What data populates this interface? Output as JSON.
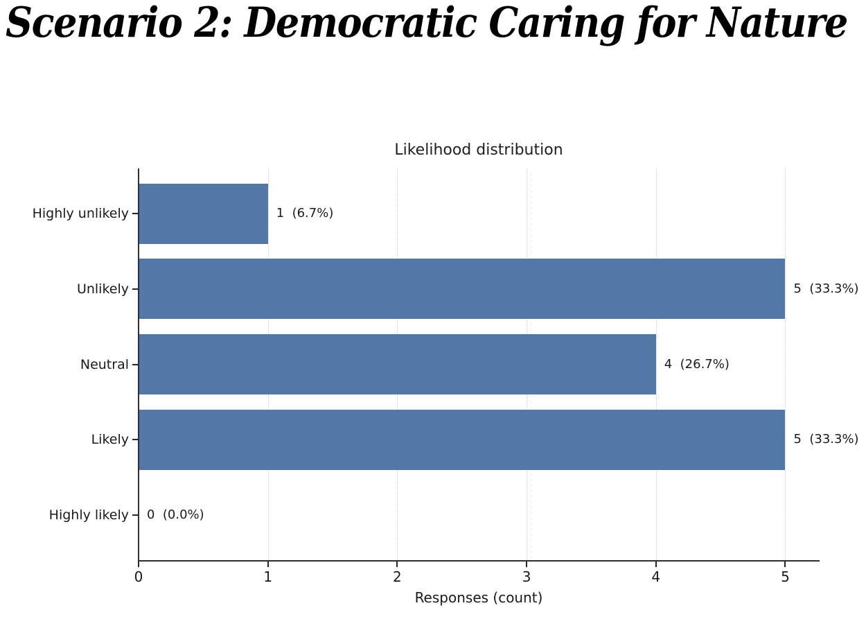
{
  "page_title": "Scenario 2: Democratic Caring for Nature",
  "chart_data": {
    "type": "bar",
    "orientation": "horizontal",
    "title": "Likelihood distribution",
    "xlabel": "Responses (count)",
    "ylabel": "",
    "categories": [
      "Highly unlikely",
      "Unlikely",
      "Neutral",
      "Likely",
      "Highly likely"
    ],
    "values": [
      1,
      5,
      4,
      5,
      0
    ],
    "value_labels": [
      "1  (6.7%)",
      "5  (33.3%)",
      "4  (26.7%)",
      "5  (33.3%)",
      "0  (0.0%)"
    ],
    "x_ticks": [
      "0",
      "1",
      "2",
      "3",
      "4",
      "5"
    ],
    "xlim": [
      0,
      5.26
    ],
    "grid": "vertical-dotted",
    "legend": "none",
    "colors": {
      "bar": "#5377a7",
      "grid": "#cccccc",
      "spine": "#2e2e2e",
      "text": "#1a1a1a"
    }
  }
}
